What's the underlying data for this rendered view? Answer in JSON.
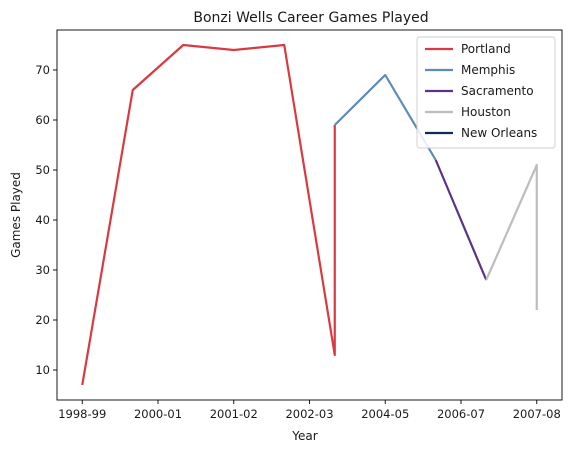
{
  "chart_data": {
    "type": "line",
    "title": "Bonzi Wells Career Games Played",
    "xlabel": "Year",
    "ylabel": "Games Played",
    "ylim": [
      4,
      78
    ],
    "yticks": [
      10,
      20,
      30,
      40,
      50,
      60,
      70
    ],
    "xlim": [
      -0.5,
      9.5
    ],
    "xticks": [
      {
        "pos": 0,
        "label": "1998-99"
      },
      {
        "pos": 1.5,
        "label": "2000-01"
      },
      {
        "pos": 3,
        "label": "2001-02"
      },
      {
        "pos": 4.5,
        "label": "2002-03"
      },
      {
        "pos": 6,
        "label": "2004-05"
      },
      {
        "pos": 7.5,
        "label": "2006-07"
      },
      {
        "pos": 9,
        "label": "2007-08"
      }
    ],
    "grid": false,
    "legend_position": "top-right",
    "series": [
      {
        "name": "Portland",
        "color": "#d93a42",
        "points": [
          [
            0,
            7
          ],
          [
            1,
            66
          ],
          [
            2,
            75
          ],
          [
            3,
            74
          ],
          [
            4,
            75
          ],
          [
            5,
            13
          ],
          [
            5,
            59
          ]
        ]
      },
      {
        "name": "Memphis",
        "color": "#5e8bb8",
        "points": [
          [
            5,
            59
          ],
          [
            6,
            69
          ],
          [
            7,
            52
          ]
        ]
      },
      {
        "name": "Sacramento",
        "color": "#5a3286",
        "points": [
          [
            7,
            52
          ],
          [
            8,
            28
          ]
        ]
      },
      {
        "name": "Houston",
        "color": "#bdbdbd",
        "points": [
          [
            8,
            28
          ],
          [
            9,
            51
          ],
          [
            9,
            22
          ]
        ]
      },
      {
        "name": "New Orleans",
        "color": "#0c2c56",
        "points": []
      }
    ]
  }
}
